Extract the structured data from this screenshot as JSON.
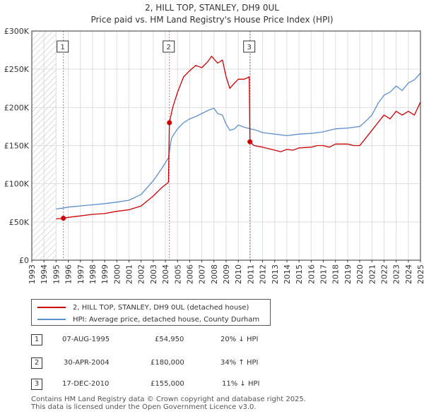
{
  "header": {
    "title": "2, HILL TOP, STANLEY, DH9 0UL",
    "subtitle": "Price paid vs. HM Land Registry's House Price Index (HPI)"
  },
  "colors": {
    "property": "#cc0000",
    "hpi": "#5b8fd0",
    "hatch": "#bbbbbb",
    "grid": "#dddddd"
  },
  "chart_data": {
    "type": "line",
    "title": "Price paid vs. HM Land Registry's House Price Index (HPI)",
    "xlabel": "",
    "ylabel": "",
    "xlim": [
      1993,
      2025
    ],
    "ylim": [
      0,
      300000
    ],
    "y_ticks": [
      0,
      50000,
      100000,
      150000,
      200000,
      250000,
      300000
    ],
    "y_tick_labels": [
      "£0",
      "£50K",
      "£100K",
      "£150K",
      "£200K",
      "£250K",
      "£300K"
    ],
    "x_tick_labels": [
      "1993",
      "1994",
      "1995",
      "1996",
      "1997",
      "1998",
      "1999",
      "2000",
      "2001",
      "2002",
      "2003",
      "2004",
      "2005",
      "2006",
      "2007",
      "2008",
      "2009",
      "2010",
      "2011",
      "2012",
      "2013",
      "2014",
      "2015",
      "2016",
      "2017",
      "2018",
      "2019",
      "2020",
      "2021",
      "2022",
      "2023",
      "2024",
      "2025"
    ],
    "hatched_until": 1995.0,
    "series": [
      {
        "name": "2, HILL TOP, STANLEY, DH9 0UL (detached house)",
        "x": [
          1995.0,
          1995.6,
          1996,
          1997,
          1998,
          1999,
          2000,
          2001,
          2002,
          2003,
          2003.7,
          2004.25,
          2004.33,
          2004.6,
          2005,
          2005.5,
          2006,
          2006.5,
          2007,
          2007.5,
          2007.8,
          2008.3,
          2008.7,
          2009,
          2009.3,
          2009.7,
          2010,
          2010.5,
          2010.9,
          2010.96,
          2011.3,
          2012,
          2013,
          2013.5,
          2014,
          2014.5,
          2015,
          2016,
          2016.5,
          2017,
          2017.5,
          2018,
          2019,
          2019.5,
          2020,
          2020.5,
          2021,
          2021.5,
          2022,
          2022.5,
          2023,
          2023.5,
          2024,
          2024.5,
          2025
        ],
        "values": [
          54000,
          54950,
          56000,
          58000,
          60000,
          61000,
          64000,
          66000,
          71000,
          84000,
          95000,
          102000,
          180000,
          200000,
          220000,
          240000,
          248000,
          255000,
          252000,
          260000,
          267000,
          258000,
          262000,
          240000,
          225000,
          232000,
          237000,
          237000,
          240000,
          155000,
          150000,
          148000,
          144000,
          142000,
          145000,
          144000,
          147000,
          148000,
          150000,
          150000,
          148000,
          152000,
          152000,
          150000,
          150000,
          160000,
          170000,
          180000,
          190000,
          185000,
          195000,
          190000,
          195000,
          190000,
          207000
        ]
      },
      {
        "name": "HPI: Average price, detached house, County Durham",
        "x": [
          1995.0,
          1995.5,
          1996,
          1997,
          1998,
          1999,
          2000,
          2001,
          2002,
          2003,
          2003.7,
          2004.25,
          2004.5,
          2005,
          2005.5,
          2006,
          2006.5,
          2007,
          2007.5,
          2008,
          2008.3,
          2008.7,
          2009,
          2009.3,
          2009.7,
          2010,
          2010.5,
          2011,
          2011.5,
          2012,
          2013,
          2014,
          2014.5,
          2015,
          2016,
          2016.5,
          2017,
          2017.5,
          2018,
          2019,
          2019.5,
          2020,
          2020.5,
          2021,
          2021.5,
          2022,
          2022.5,
          2023,
          2023.5,
          2024,
          2024.5,
          2025
        ],
        "values": [
          67000,
          68000,
          69500,
          71000,
          72500,
          74000,
          76000,
          78500,
          86000,
          104000,
          120000,
          134000,
          160000,
          172000,
          180000,
          185000,
          188000,
          192000,
          196000,
          199000,
          192000,
          190000,
          178000,
          170000,
          172000,
          177000,
          174000,
          172000,
          170000,
          167000,
          165000,
          163000,
          164000,
          165000,
          166000,
          167000,
          168000,
          170000,
          172000,
          173000,
          174000,
          175000,
          182000,
          190000,
          205000,
          216000,
          220000,
          228000,
          222000,
          232000,
          236000,
          245000
        ]
      }
    ],
    "sales": [
      {
        "num": "1",
        "x": 1995.6,
        "y": 54950
      },
      {
        "num": "2",
        "x": 2004.33,
        "y": 180000
      },
      {
        "num": "3",
        "x": 2010.96,
        "y": 155000
      }
    ]
  },
  "legend": {
    "property_label": "2, HILL TOP, STANLEY, DH9 0UL (detached house)",
    "hpi_label": "HPI: Average price, detached house, County Durham"
  },
  "sales_table": [
    {
      "num": "1",
      "date": "07-AUG-1995",
      "price": "£54,950",
      "hpi": "20% ↓ HPI"
    },
    {
      "num": "2",
      "date": "30-APR-2004",
      "price": "£180,000",
      "hpi": "34% ↑ HPI"
    },
    {
      "num": "3",
      "date": "17-DEC-2010",
      "price": "£155,000",
      "hpi": "11% ↓ HPI"
    }
  ],
  "footer": {
    "line1": "Contains HM Land Registry data © Crown copyright and database right 2025.",
    "line2": "This data is licensed under the Open Government Licence v3.0."
  }
}
